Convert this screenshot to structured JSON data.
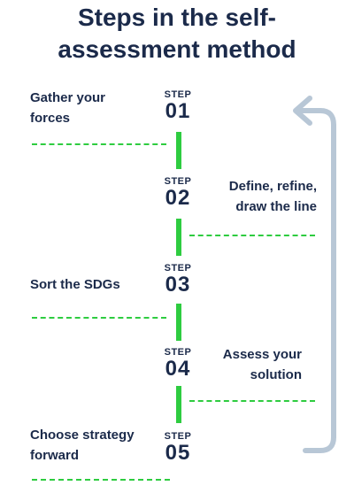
{
  "title": {
    "line1": "Steps in the self-",
    "line2": "assessment method"
  },
  "colors": {
    "text": "#1b2a4a",
    "accent_green": "#2ecc40",
    "arrow": "#b8c7d6"
  },
  "steps": [
    {
      "step_word": "STEP",
      "number": "01",
      "label_lines": [
        "Gather your",
        "forces"
      ],
      "side": "left"
    },
    {
      "step_word": "STEP",
      "number": "02",
      "label_lines": [
        "Define, refine,",
        "draw the line"
      ],
      "side": "right"
    },
    {
      "step_word": "STEP",
      "number": "03",
      "label_lines": [
        "Sort the SDGs"
      ],
      "side": "left"
    },
    {
      "step_word": "STEP",
      "number": "04",
      "label_lines": [
        "Assess your",
        "solution"
      ],
      "side": "right"
    },
    {
      "step_word": "STEP",
      "number": "05",
      "label_lines": [
        "Choose strategy",
        "forward"
      ],
      "side": "left"
    }
  ],
  "icons": {
    "loop_arrow": "return-arrow-icon"
  }
}
